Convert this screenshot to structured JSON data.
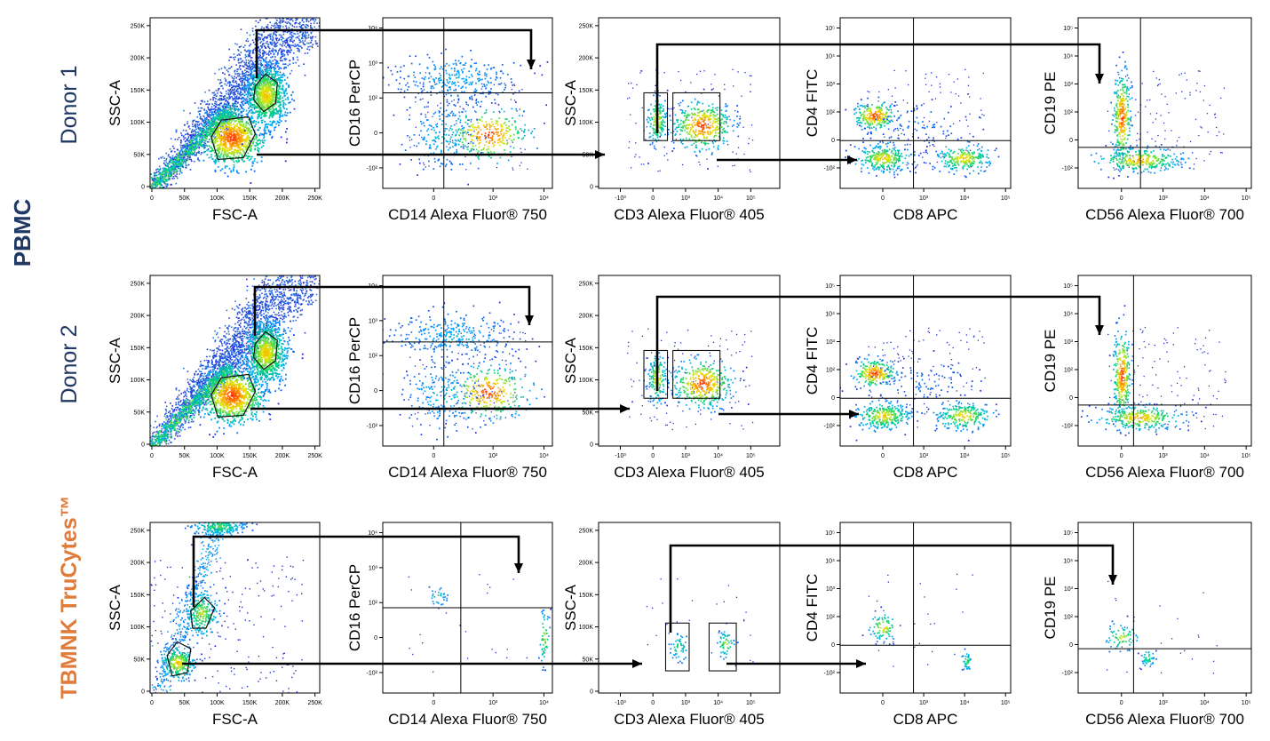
{
  "groups": {
    "pbmc": "PBMC",
    "tbmnk": "TBMNK TruCytes™"
  },
  "rows": [
    {
      "label": "Donor 1"
    },
    {
      "label": "Donor 2"
    },
    {
      "label": ""
    }
  ],
  "colors": {
    "navy": "#1f3864",
    "orange": "#e07b39",
    "dots": "#2233cc",
    "hot": "#ff2a00",
    "arrow": "#000000"
  },
  "panels": [
    {
      "xlabel": "FSC-A",
      "ylabel": "SSC-A",
      "xticks": [
        "0",
        "50K",
        "100K",
        "150K",
        "200K",
        "250K"
      ],
      "yticks": [
        "0",
        "50K",
        "100K",
        "150K",
        "200K",
        "250K"
      ]
    },
    {
      "xlabel": "CD14 Alexa Fluor® 750",
      "ylabel": "CD16 PerCP",
      "xticks": [
        "0",
        "10³",
        "10⁴"
      ],
      "yticks": [
        "-10²",
        "0",
        "10²",
        "10³",
        "10⁴"
      ]
    },
    {
      "xlabel": "CD3 Alexa Fluor® 405",
      "ylabel": "SSC-A",
      "xticks": [
        "-10³",
        "0",
        "10³",
        "10⁴",
        "10⁵"
      ],
      "yticks": [
        "0",
        "50K",
        "100K",
        "150K",
        "200K",
        "250K"
      ]
    },
    {
      "xlabel": "CD8 APC",
      "ylabel": "CD4 FITC",
      "xticks": [
        "0",
        "10³",
        "10⁴",
        "10⁵"
      ],
      "yticks": [
        "-10²",
        "0",
        "10²",
        "10³",
        "10⁴",
        "10⁵"
      ]
    },
    {
      "xlabel": "CD56 Alexa Fluor® 700",
      "ylabel": "CD19 PE",
      "xticks": [
        "0",
        "10³",
        "10⁴",
        "10⁵"
      ],
      "yticks": [
        "-10²",
        "0",
        "10²",
        "10³",
        "10⁴",
        "10⁵"
      ]
    }
  ]
}
